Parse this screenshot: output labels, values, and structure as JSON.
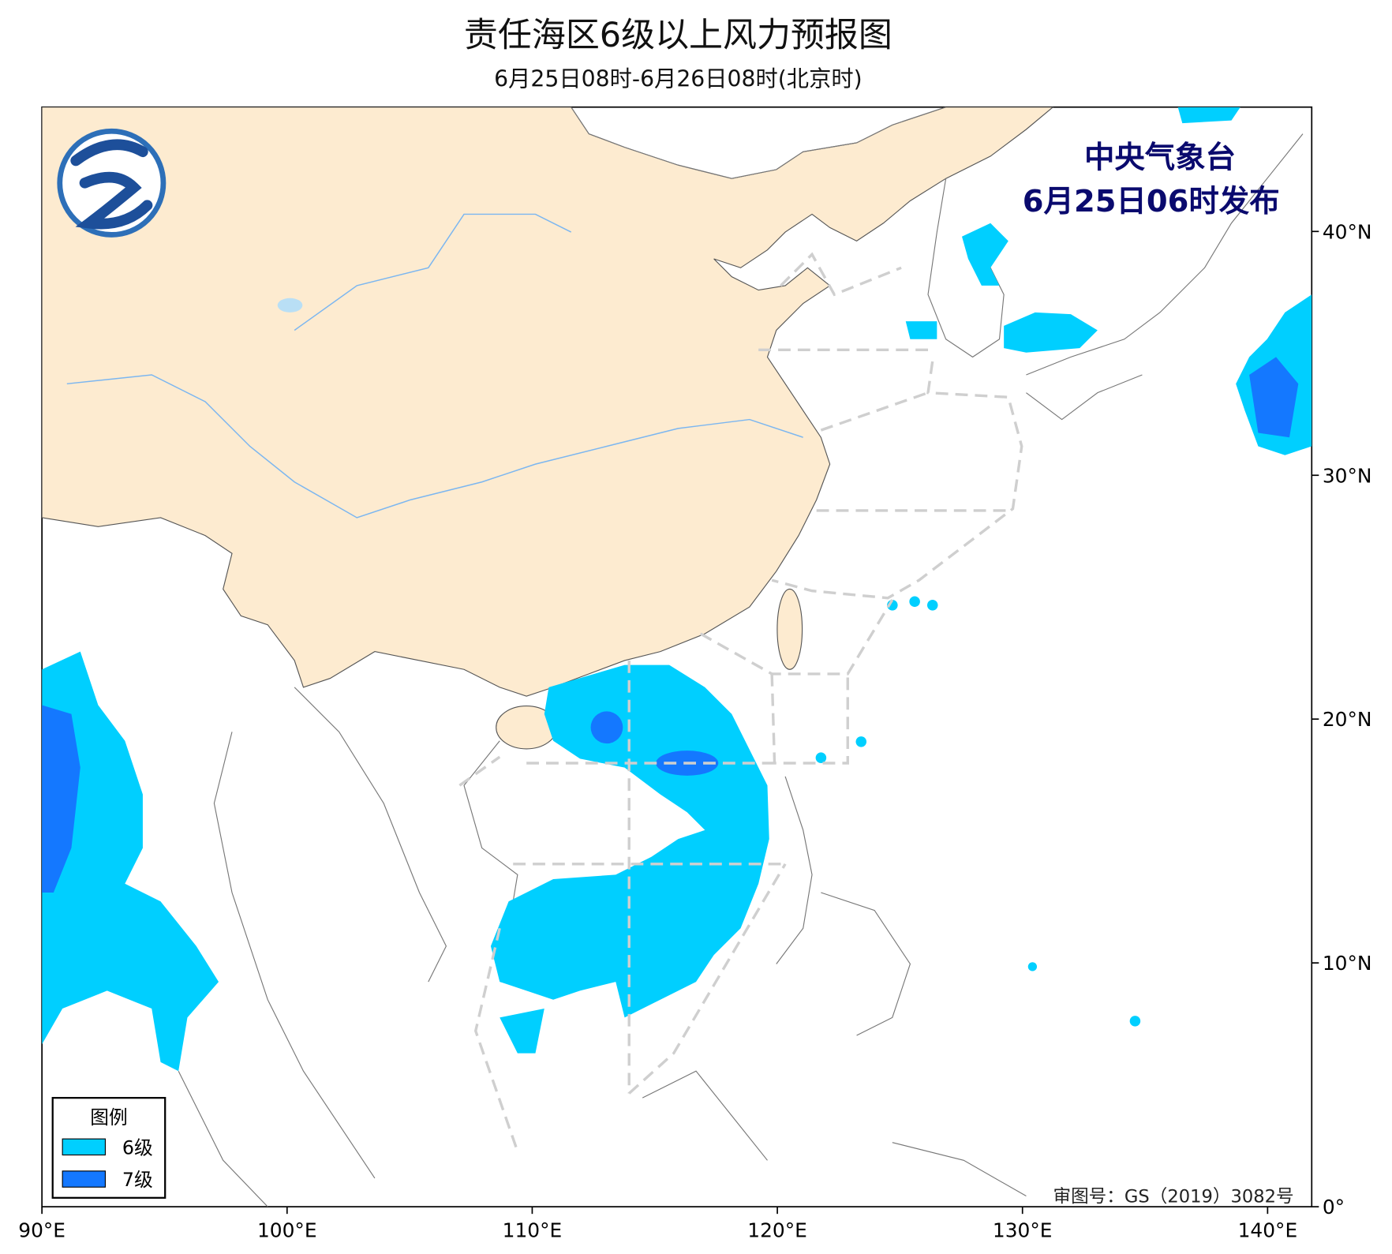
{
  "title": "责任海区6级以上风力预报图",
  "subtitle": "6月25日08时-6月26日08时(北京时)",
  "agency": "中央气象台",
  "issued": "6月25日06时发布",
  "legend": {
    "title": "图例",
    "items": [
      {
        "label": "6级",
        "color": "#00cfff"
      },
      {
        "label": "7级",
        "color": "#1478ff"
      }
    ]
  },
  "map": {
    "xlim": [
      90,
      141.8
    ],
    "ylim": [
      0,
      45.1
    ],
    "xticks": [
      {
        "value": 90,
        "label": "90°E"
      },
      {
        "value": 100,
        "label": "100°E"
      },
      {
        "value": 110,
        "label": "110°E"
      },
      {
        "value": 120,
        "label": "120°E"
      },
      {
        "value": 130,
        "label": "130°E"
      },
      {
        "value": 140,
        "label": "140°E"
      }
    ],
    "yticks": [
      {
        "value": 0,
        "label": "0°"
      },
      {
        "value": 10,
        "label": "10°N"
      },
      {
        "value": 20,
        "label": "20°N"
      },
      {
        "value": 30,
        "label": "30°N"
      },
      {
        "value": 40,
        "label": "40°N"
      }
    ]
  },
  "approval": "审图号：GS（2019）3082号"
}
